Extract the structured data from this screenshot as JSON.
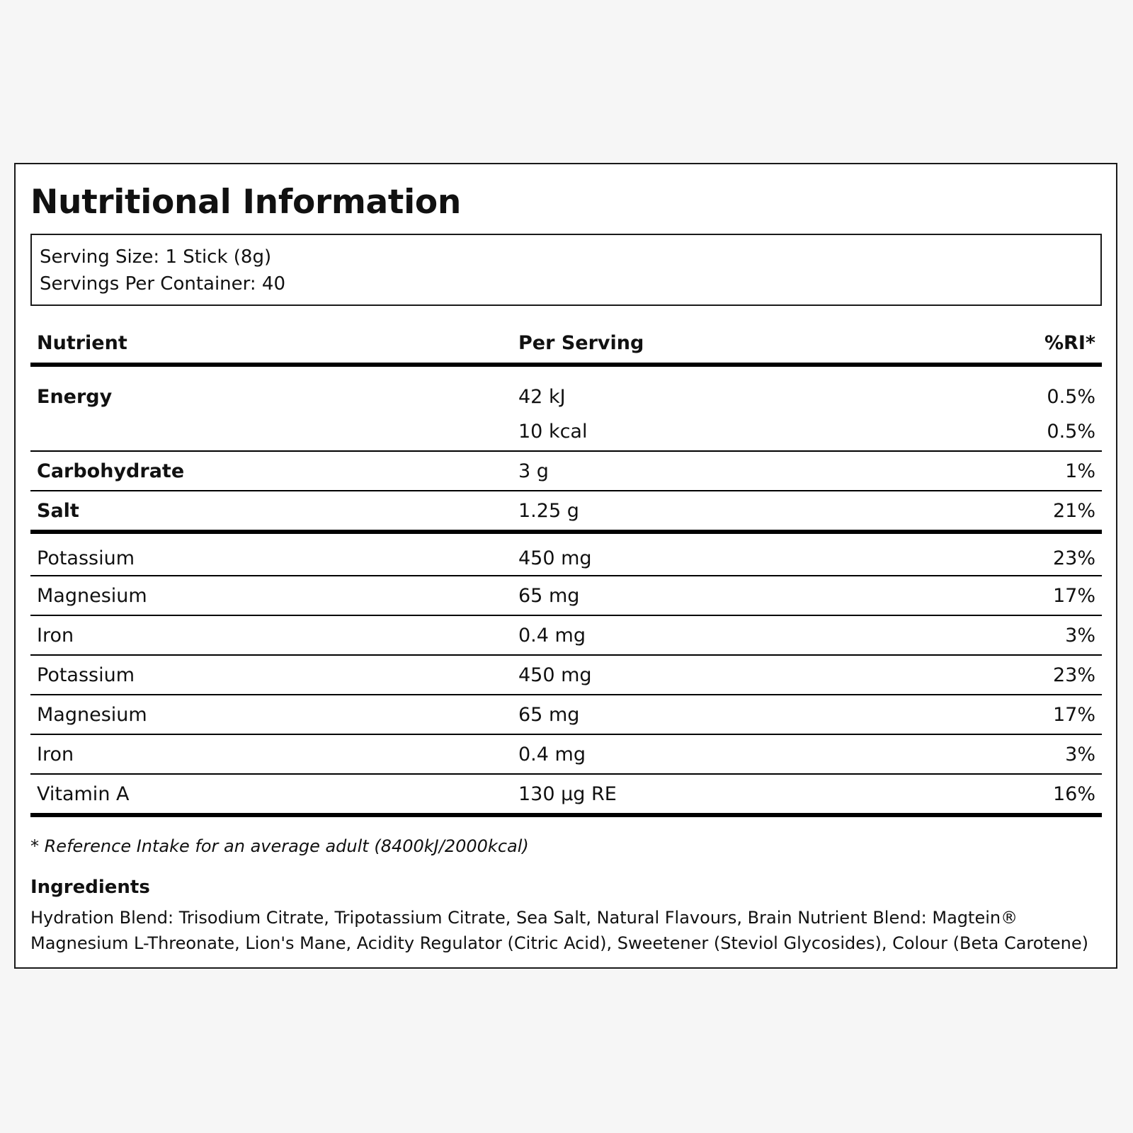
{
  "title": "Nutritional Information",
  "serving": {
    "size": "Serving Size: 1 Stick (8g)",
    "per_container": "Servings Per Container: 40"
  },
  "table": {
    "headers": {
      "nutrient": "Nutrient",
      "per_serving": "Per Serving",
      "ri": "%RI*"
    },
    "energy": {
      "name": "Energy",
      "kj": "42 kJ",
      "kj_ri": "0.5%",
      "kcal": "10 kcal",
      "kcal_ri": "0.5%"
    },
    "carbohydrate": {
      "name": "Carbohydrate",
      "value": "3 g",
      "ri": "1%"
    },
    "salt": {
      "name": "Salt",
      "value": "1.25 g",
      "ri": "21%"
    },
    "minerals": [
      {
        "name": "Potassium",
        "value": "450 mg",
        "ri": "23%"
      },
      {
        "name": "Magnesium",
        "value": "65 mg",
        "ri": "17%"
      },
      {
        "name": "Iron",
        "value": "0.4 mg",
        "ri": "3%"
      },
      {
        "name": "Potassium",
        "value": "450 mg",
        "ri": "23%"
      },
      {
        "name": "Magnesium",
        "value": "65 mg",
        "ri": "17%"
      },
      {
        "name": "Iron",
        "value": "0.4 mg",
        "ri": "3%"
      },
      {
        "name": "Vitamin A",
        "value": "130 µg RE",
        "ri": "16%"
      }
    ]
  },
  "footnote": "* Reference Intake for an average adult (8400kJ/2000kcal)",
  "ingredients": {
    "title": "Ingredients",
    "text": "Hydration Blend: Trisodium Citrate, Tripotassium Citrate, Sea Salt, Natural Flavours, Brain Nutrient Blend: Magtein® Magnesium L-Threonate, Lion's Mane, Acidity Regulator (Citric Acid), Sweetener (Steviol Glycosides), Colour (Beta Carotene)"
  }
}
